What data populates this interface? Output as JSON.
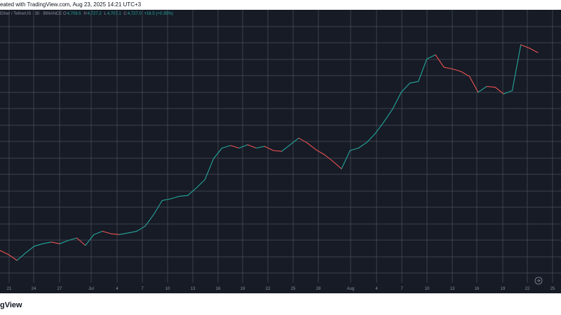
{
  "header": {
    "caption": "eated with TradingView.com, Aug 23, 2025 14:21 UTC+3"
  },
  "legend": {
    "symbol": "Ether / TetherUS · 30 · BINANCE",
    "open_label": "O",
    "open": "4,709.5",
    "high_label": "H",
    "high": "4,727.2",
    "low_label": "L",
    "low": "4,707.1",
    "close_label": "C",
    "close": "4,727.0",
    "change": "+16.5 (+0.35%)",
    "up_color": "#26a69a"
  },
  "footer": {
    "logo_text": "gView"
  },
  "controls": {
    "goto_icon": "goto-realtime-icon"
  },
  "colors": {
    "background": "#161b26",
    "grid": "#4a505c",
    "up": "#26a69a",
    "down": "#ef5350",
    "axis_text": "#8a8f9c"
  },
  "chart_data": {
    "type": "line",
    "grid": true,
    "x_tick_labels": [
      "21",
      "24",
      "27",
      "Jul",
      "4",
      "7",
      "10",
      "13",
      "16",
      "19",
      "22",
      "25",
      "28",
      "Aug",
      "4",
      "7",
      "10",
      "13",
      "16",
      "19",
      "22",
      "25"
    ],
    "x": [
      "21",
      "22",
      "23",
      "24",
      "25",
      "26",
      "27",
      "28",
      "29",
      "30",
      "Jul",
      "2",
      "3",
      "4",
      "5",
      "6",
      "7",
      "8",
      "9",
      "10",
      "11",
      "12",
      "13",
      "14",
      "15",
      "16",
      "17",
      "18",
      "19",
      "20",
      "21",
      "22",
      "23",
      "24",
      "25",
      "26",
      "27",
      "28",
      "29",
      "30",
      "31",
      "Aug",
      "2",
      "3",
      "4",
      "5",
      "6",
      "7",
      "8",
      "9",
      "10",
      "11",
      "12",
      "13",
      "14",
      "15",
      "16",
      "17",
      "18",
      "19",
      "20",
      "21",
      "22",
      "23"
    ],
    "series": [
      {
        "values": [
          2350,
          2300,
          2230,
          2320,
          2400,
          2430,
          2450,
          2430,
          2470,
          2500,
          2410,
          2540,
          2580,
          2550,
          2540,
          2560,
          2580,
          2640,
          2780,
          2950,
          2970,
          3000,
          3010,
          3100,
          3200,
          3450,
          3580,
          3610,
          3580,
          3620,
          3580,
          3600,
          3550,
          3540,
          3620,
          3700,
          3640,
          3560,
          3500,
          3420,
          3330,
          3550,
          3580,
          3650,
          3760,
          3900,
          4050,
          4250,
          4360,
          4380,
          4650,
          4700,
          4550,
          4530,
          4500,
          4440,
          4250,
          4320,
          4310,
          4230,
          4270,
          4820,
          4780,
          4727
        ]
      }
    ]
  }
}
